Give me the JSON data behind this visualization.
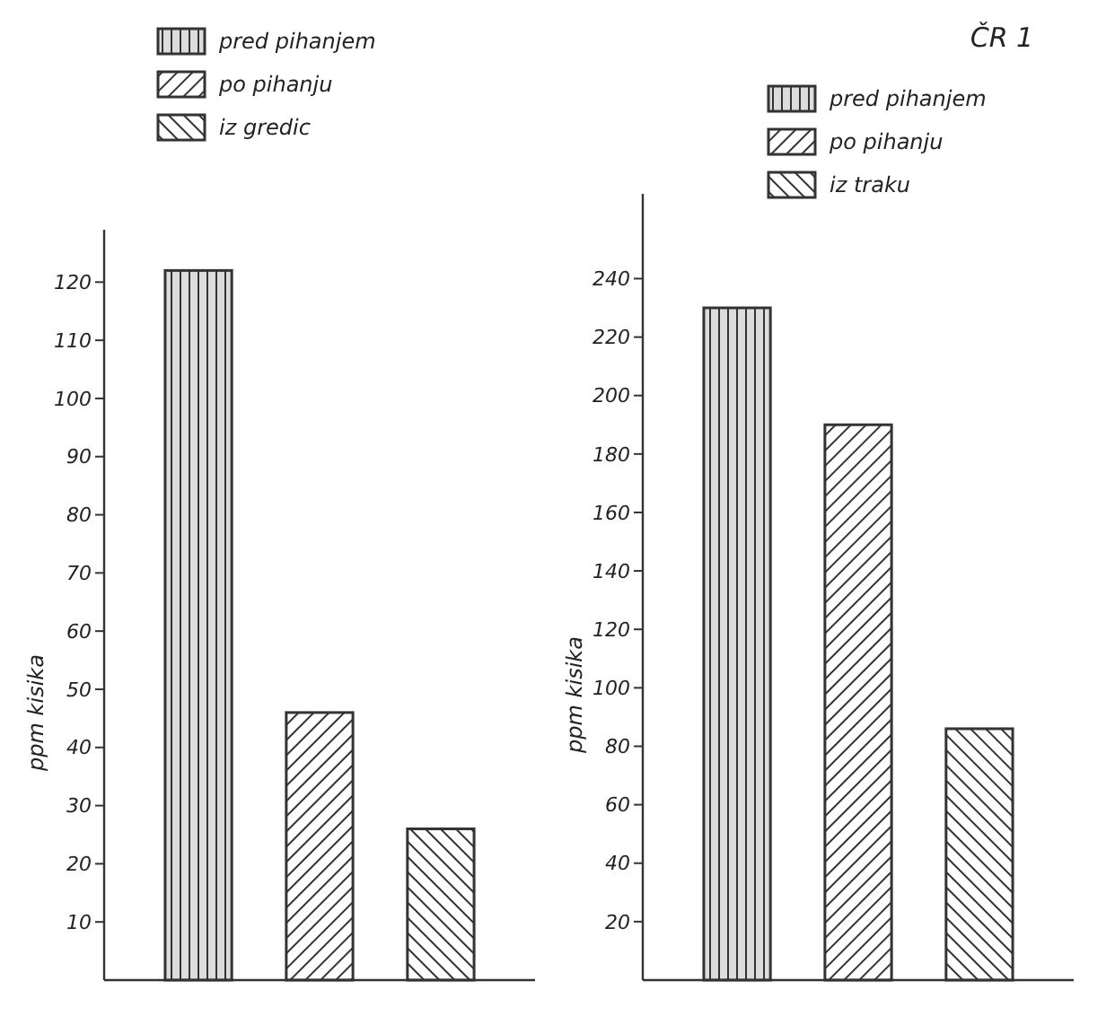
{
  "chart_data": [
    {
      "type": "bar",
      "ylabel": "ppm kisika",
      "categories": [
        null
      ],
      "ylim": [
        0,
        129
      ],
      "yticks": [
        10,
        20,
        30,
        40,
        50,
        60,
        70,
        80,
        90,
        100,
        110,
        120
      ],
      "legend": "top",
      "series": [
        {
          "name": "pred pihanjem",
          "color": "#333333",
          "values": [
            122
          ]
        },
        {
          "name": "po pihanju",
          "color": "#333333",
          "values": [
            46
          ]
        },
        {
          "name": "iz gredic",
          "color": "#333333",
          "values": [
            26
          ]
        }
      ]
    },
    {
      "type": "bar",
      "title": "ČR 1",
      "ylabel": "ppm kisika",
      "categories": [
        null
      ],
      "ylim": [
        0,
        269
      ],
      "yticks": [
        20,
        40,
        60,
        80,
        100,
        120,
        140,
        160,
        180,
        200,
        220,
        240
      ],
      "legend": "top right",
      "series": [
        {
          "name": "pred pihanjem",
          "color": "#333333",
          "values": [
            230
          ]
        },
        {
          "name": "po pihanju",
          "color": "#333333",
          "values": [
            190
          ]
        },
        {
          "name": "iz traku",
          "color": "#333333",
          "values": [
            86
          ]
        }
      ]
    }
  ]
}
